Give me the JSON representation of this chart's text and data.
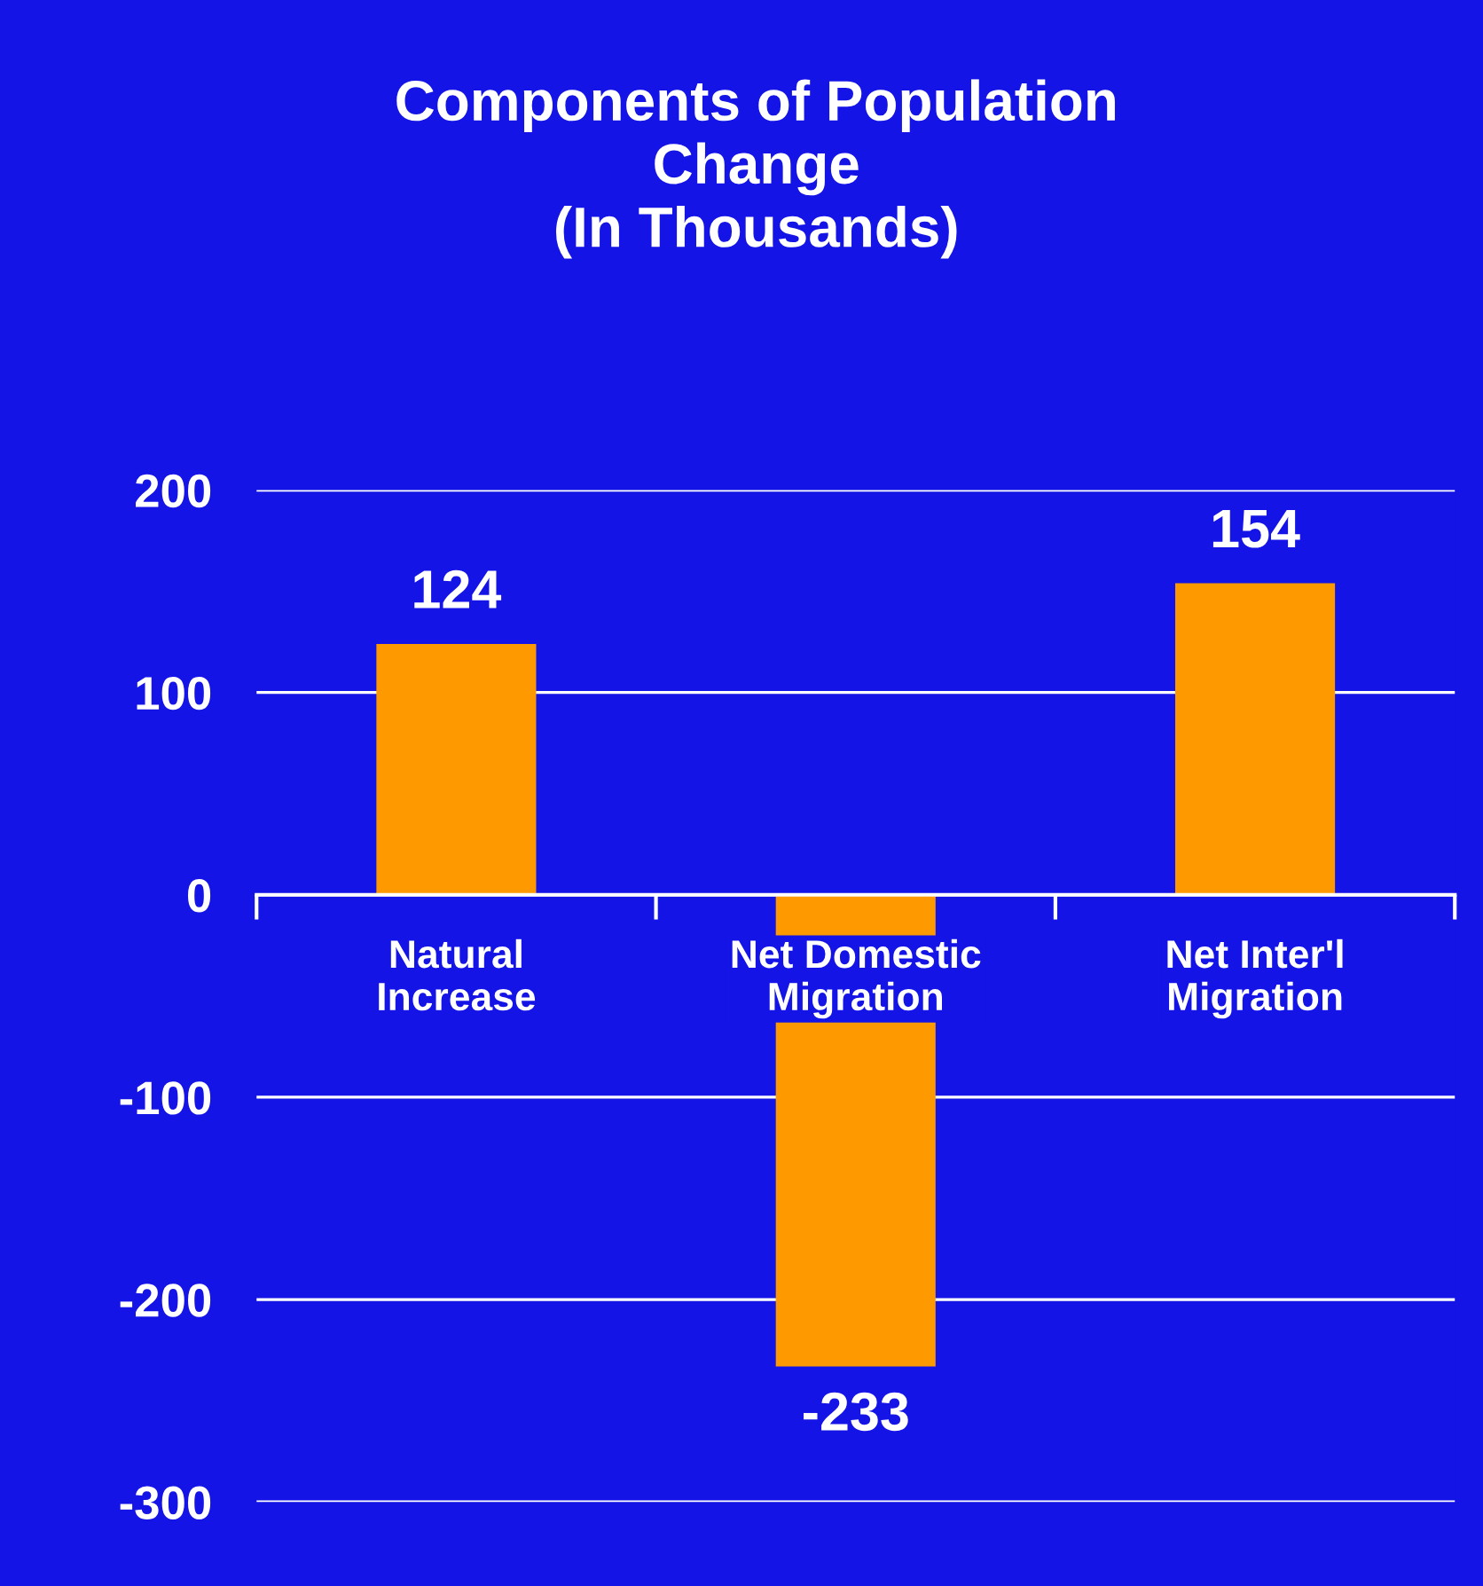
{
  "chart_data": {
    "type": "bar",
    "title": "Components of Population\nChange\n(In Thousands)",
    "categories": [
      "Natural\nIncrease",
      "Net Domestic\nMigration",
      "Net Inter'l\nMigration"
    ],
    "values": [
      124,
      -233,
      154
    ],
    "color": "#ff9900",
    "ylim": [
      -300,
      200
    ],
    "yticks": [
      -300,
      -200,
      -100,
      0,
      100,
      200
    ],
    "grid": "y",
    "data_labels": true
  }
}
